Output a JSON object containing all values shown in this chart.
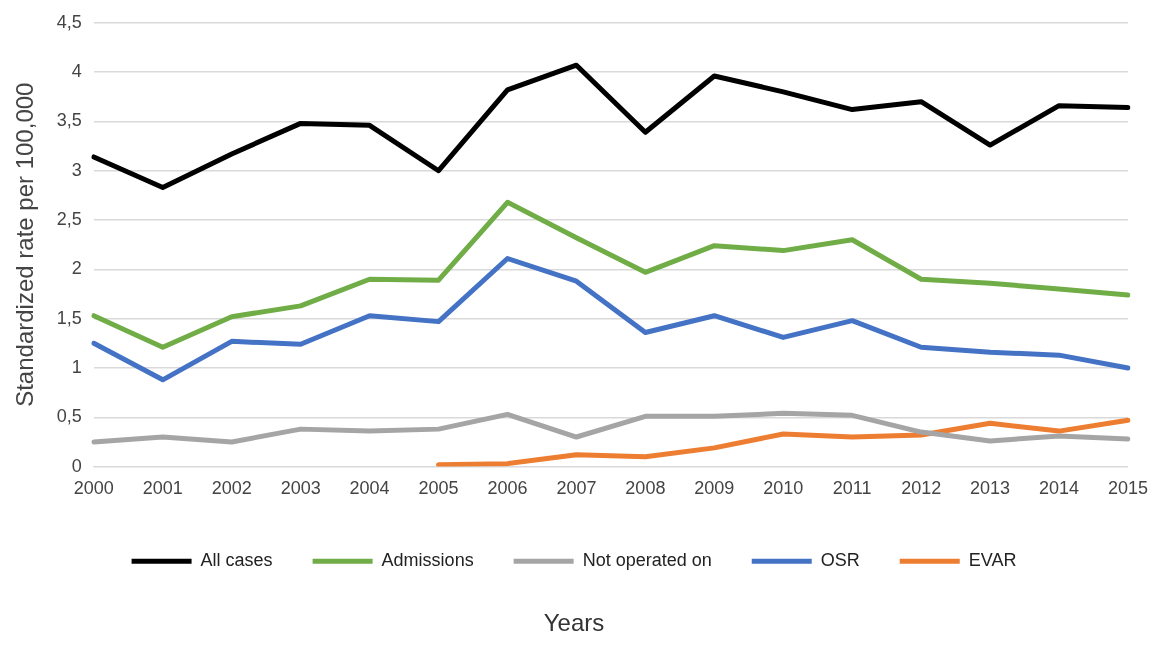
{
  "chart_data": {
    "type": "line",
    "ylabel": "Standardized rate per 100,000",
    "xlabel": "Years",
    "categories": [
      "2000",
      "2001",
      "2002",
      "2003",
      "2004",
      "2005",
      "2006",
      "2007",
      "2008",
      "2009",
      "2010",
      "2011",
      "2012",
      "2013",
      "2014",
      "2015"
    ],
    "ylim": [
      0,
      4.5
    ],
    "yticks": [
      0,
      {
        "value": 0.5,
        "label": "0,5"
      },
      1,
      {
        "value": 1.5,
        "label": "1,5"
      },
      2,
      {
        "value": 2.5,
        "label": "2,5"
      },
      3,
      {
        "value": 3.5,
        "label": "3,5"
      },
      4,
      {
        "value": 4.5,
        "label": "4,5"
      }
    ],
    "grid": "y",
    "legend": "bottom",
    "marker": "none",
    "line_style": "solid",
    "series": [
      {
        "name": "All cases",
        "color": "#000000",
        "values": [
          3.14,
          2.83,
          3.17,
          3.48,
          3.46,
          3.0,
          3.82,
          4.07,
          3.39,
          3.96,
          3.8,
          3.62,
          3.7,
          3.26,
          3.66,
          3.64
        ]
      },
      {
        "name": "Admissions",
        "color": "#70ad47",
        "values": [
          1.53,
          1.21,
          1.52,
          1.63,
          1.9,
          1.89,
          2.68,
          2.32,
          1.97,
          2.24,
          2.19,
          2.3,
          1.9,
          1.86,
          1.8,
          1.74
        ]
      },
      {
        "name": "Not operated on",
        "color": "#a5a5a5",
        "values": [
          0.25,
          0.3,
          0.25,
          0.38,
          0.36,
          0.38,
          0.53,
          0.3,
          0.51,
          0.51,
          0.54,
          0.52,
          0.35,
          0.26,
          0.31,
          0.28
        ]
      },
      {
        "name": "OSR",
        "color": "#4472c4",
        "values": [
          1.25,
          0.88,
          1.27,
          1.24,
          1.53,
          1.47,
          2.11,
          1.88,
          1.36,
          1.53,
          1.31,
          1.48,
          1.21,
          1.16,
          1.13,
          1.0
        ]
      },
      {
        "name": "EVAR",
        "color": "#ed7d31",
        "values": [
          null,
          null,
          null,
          null,
          null,
          0.02,
          0.03,
          0.12,
          0.1,
          0.19,
          0.33,
          0.3,
          0.32,
          0.44,
          0.36,
          0.47
        ]
      }
    ]
  }
}
